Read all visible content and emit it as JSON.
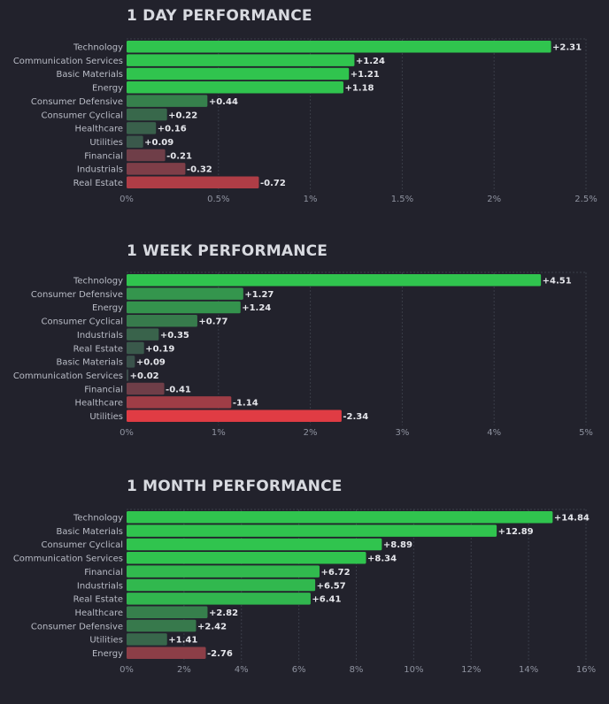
{
  "chart_data": [
    {
      "type": "bar",
      "orientation": "horizontal",
      "title": "1 DAY PERFORMANCE",
      "categories": [
        "Technology",
        "Communication Services",
        "Basic Materials",
        "Energy",
        "Consumer Defensive",
        "Consumer Cyclical",
        "Healthcare",
        "Utilities",
        "Financial",
        "Industrials",
        "Real Estate"
      ],
      "values": [
        2.31,
        1.24,
        1.21,
        1.18,
        0.44,
        0.22,
        0.16,
        0.09,
        -0.21,
        -0.32,
        -0.72
      ],
      "value_labels": [
        "+2.31",
        "+1.24",
        "+1.21",
        "+1.18",
        "+0.44",
        "+0.22",
        "+0.16",
        "+0.09",
        "-0.21",
        "-0.32",
        "-0.72"
      ],
      "xlim": [
        0,
        2.5
      ],
      "xticks": [
        0,
        0.5,
        1,
        1.5,
        2,
        2.5
      ],
      "xtick_labels": [
        "0%",
        "0.5%",
        "1%",
        "1.5%",
        "2%",
        "2.5%"
      ],
      "bar_length": "absolute value",
      "grid": true,
      "colors": {
        "positive": "#30c44e",
        "negative": "#e03c44",
        "neutral": "#3c3f4a"
      }
    },
    {
      "type": "bar",
      "orientation": "horizontal",
      "title": "1 WEEK PERFORMANCE",
      "categories": [
        "Technology",
        "Consumer Defensive",
        "Energy",
        "Consumer Cyclical",
        "Industrials",
        "Real Estate",
        "Basic Materials",
        "Communication Services",
        "Financial",
        "Healthcare",
        "Utilities"
      ],
      "values": [
        4.51,
        1.27,
        1.24,
        0.77,
        0.35,
        0.19,
        0.09,
        0.02,
        -0.41,
        -1.14,
        -2.34
      ],
      "value_labels": [
        "+4.51",
        "+1.27",
        "+1.24",
        "+0.77",
        "+0.35",
        "+0.19",
        "+0.09",
        "+0.02",
        "-0.41",
        "-1.14",
        "-2.34"
      ],
      "xlim": [
        0,
        5
      ],
      "xticks": [
        0,
        1,
        2,
        3,
        4,
        5
      ],
      "xtick_labels": [
        "0%",
        "1%",
        "2%",
        "3%",
        "4%",
        "5%"
      ],
      "bar_length": "absolute value",
      "grid": true,
      "colors": {
        "positive": "#30c44e",
        "negative": "#e03c44",
        "neutral": "#3c3f4a"
      }
    },
    {
      "type": "bar",
      "orientation": "horizontal",
      "title": "1 MONTH PERFORMANCE",
      "categories": [
        "Technology",
        "Basic Materials",
        "Consumer Cyclical",
        "Communication Services",
        "Financial",
        "Industrials",
        "Real Estate",
        "Healthcare",
        "Consumer Defensive",
        "Utilities",
        "Energy"
      ],
      "values": [
        14.84,
        12.89,
        8.89,
        8.34,
        6.72,
        6.57,
        6.41,
        2.82,
        2.42,
        1.41,
        -2.76
      ],
      "value_labels": [
        "+14.84",
        "+12.89",
        "+8.89",
        "+8.34",
        "+6.72",
        "+6.57",
        "+6.41",
        "+2.82",
        "+2.42",
        "+1.41",
        "-2.76"
      ],
      "xlim": [
        0,
        16
      ],
      "xticks": [
        0,
        2,
        4,
        6,
        8,
        10,
        12,
        14,
        16
      ],
      "xtick_labels": [
        "0%",
        "2%",
        "4%",
        "6%",
        "8%",
        "10%",
        "12%",
        "14%",
        "16%"
      ],
      "bar_length": "absolute value",
      "grid": true,
      "colors": {
        "positive": "#30c44e",
        "negative": "#e03c44",
        "neutral": "#3c3f4a"
      }
    }
  ]
}
